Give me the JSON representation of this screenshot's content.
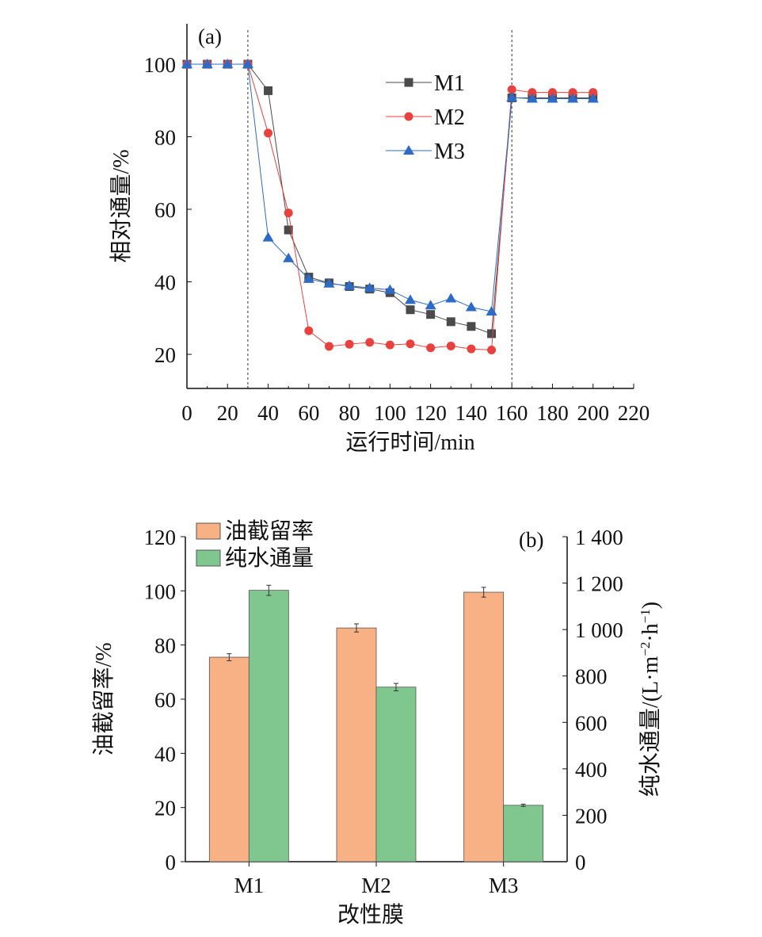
{
  "chart_data": [
    {
      "type": "line",
      "panel": "(a)",
      "xlabel": "运行时间/min",
      "ylabel": "相对通量/%",
      "xlim": [
        0,
        220
      ],
      "ylim": [
        10,
        110
      ],
      "xticks": [
        0,
        20,
        40,
        60,
        80,
        100,
        120,
        140,
        160,
        180,
        200,
        220
      ],
      "yticks": [
        20,
        40,
        60,
        80,
        100
      ],
      "vlines": [
        30,
        160
      ],
      "legend_position": "top-center",
      "x": [
        0,
        10,
        20,
        30,
        40,
        50,
        60,
        70,
        80,
        90,
        100,
        110,
        120,
        130,
        140,
        150,
        160,
        170,
        180,
        190,
        200
      ],
      "series": [
        {
          "name": "M1",
          "color": "#4a4a4a",
          "marker": "square",
          "values": [
            100,
            100,
            100,
            100,
            92.7,
            54.3,
            41.3,
            39.7,
            38.7,
            38.0,
            37.0,
            32.3,
            31.0,
            29.0,
            27.7,
            25.7,
            90.7,
            90.7,
            90.7,
            90.7,
            90.7
          ]
        },
        {
          "name": "M2",
          "color": "#e8423f",
          "marker": "circle",
          "values": [
            100,
            100,
            100,
            100,
            81,
            59,
            26.5,
            22.2,
            22.8,
            23.3,
            22.6,
            22.9,
            21.8,
            22.3,
            21.5,
            21.2,
            93,
            92.2,
            92.2,
            92.2,
            92.2
          ]
        },
        {
          "name": "M3",
          "color": "#2e6bc6",
          "marker": "triangle",
          "values": [
            100,
            100,
            100,
            100,
            52.2,
            46.5,
            40.8,
            39.5,
            38.9,
            38.3,
            37.8,
            35,
            33.5,
            35.4,
            33,
            31.8,
            90.8,
            90.5,
            90.5,
            90.5,
            90.5
          ]
        }
      ]
    },
    {
      "type": "bar",
      "panel": "(b)",
      "xlabel": "改性膜",
      "ylabel": "油截留率/%",
      "y2label_main": "纯水通量/(L·m",
      "y2label_sup1": "−2",
      "y2label_mid": "·h",
      "y2label_sup2": "−1",
      "y2label_end": ")",
      "categories": [
        "M1",
        "M2",
        "M3"
      ],
      "ylim": [
        0,
        120
      ],
      "y2lim": [
        0,
        1400
      ],
      "yticks": [
        0,
        20,
        40,
        60,
        80,
        100,
        120
      ],
      "y2ticks": [
        "0",
        "200",
        "400",
        "600",
        "800",
        "1 000",
        "1 200",
        "1 400"
      ],
      "legend_position": "top-left",
      "series": [
        {
          "name": "油截留率",
          "axis": "left",
          "color": "#f8b185",
          "values": [
            75.5,
            86.3,
            99.5
          ],
          "errors": [
            1.3,
            1.5,
            1.8
          ]
        },
        {
          "name": "纯水通量",
          "axis": "right",
          "color": "#80c78f",
          "values": [
            1169,
            752,
            243
          ],
          "errors": [
            22,
            16,
            5
          ]
        }
      ]
    }
  ]
}
